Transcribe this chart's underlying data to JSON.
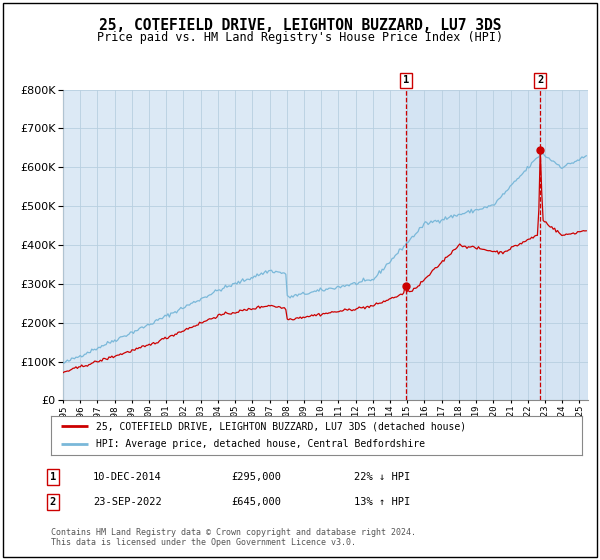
{
  "title": "25, COTEFIELD DRIVE, LEIGHTON BUZZARD, LU7 3DS",
  "subtitle": "Price paid vs. HM Land Registry's House Price Index (HPI)",
  "legend_line1": "25, COTEFIELD DRIVE, LEIGHTON BUZZARD, LU7 3DS (detached house)",
  "legend_line2": "HPI: Average price, detached house, Central Bedfordshire",
  "annotation1_date": "10-DEC-2014",
  "annotation1_price": "£295,000",
  "annotation1_hpi": "22% ↓ HPI",
  "annotation2_date": "23-SEP-2022",
  "annotation2_price": "£645,000",
  "annotation2_hpi": "13% ↑ HPI",
  "footer": "Contains HM Land Registry data © Crown copyright and database right 2024.\nThis data is licensed under the Open Government Licence v3.0.",
  "hpi_color": "#7ab8d9",
  "price_color": "#cc0000",
  "bg_color": "#dce9f5",
  "plot_bg": "#ffffff",
  "grid_color": "#b8cfe0",
  "sale1_x": 2014.917,
  "sale1_y": 295000,
  "sale2_x": 2022.722,
  "sale2_y": 645000,
  "ylim": [
    0,
    800000
  ],
  "xlim_start": 1995,
  "xlim_end": 2025.5
}
